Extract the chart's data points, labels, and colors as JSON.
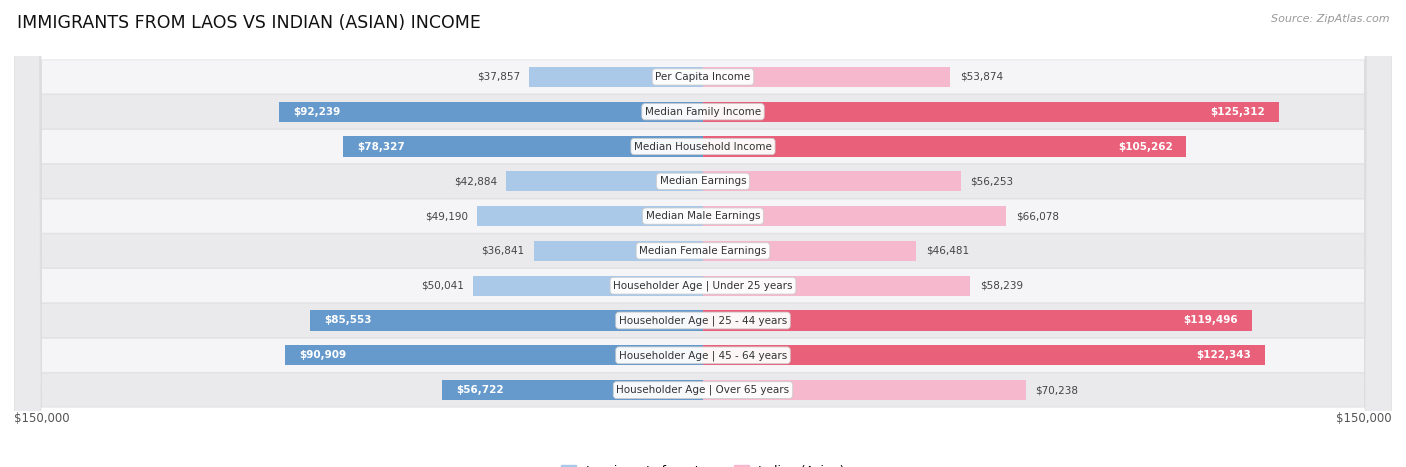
{
  "title": "IMMIGRANTS FROM LAOS VS INDIAN (ASIAN) INCOME",
  "source": "Source: ZipAtlas.com",
  "categories": [
    "Per Capita Income",
    "Median Family Income",
    "Median Household Income",
    "Median Earnings",
    "Median Male Earnings",
    "Median Female Earnings",
    "Householder Age | Under 25 years",
    "Householder Age | 25 - 44 years",
    "Householder Age | 45 - 64 years",
    "Householder Age | Over 65 years"
  ],
  "laos_values": [
    37857,
    92239,
    78327,
    42884,
    49190,
    36841,
    50041,
    85553,
    90909,
    56722
  ],
  "indian_values": [
    53874,
    125312,
    105262,
    56253,
    66078,
    46481,
    58239,
    119496,
    122343,
    70238
  ],
  "laos_color_light": "#aac8e8",
  "laos_color_dark": "#6699cc",
  "indian_color_light": "#f5b8cc",
  "indian_color_dark": "#e8607a",
  "max_value": 150000,
  "bar_height": 0.58,
  "row_bg_light": "#f5f5f7",
  "row_bg_dark": "#eaeaed",
  "legend_laos": "Immigrants from Laos",
  "legend_indian": "Indian (Asian)",
  "label_inside_threshold_laos": 55000,
  "label_inside_threshold_indian": 90000
}
